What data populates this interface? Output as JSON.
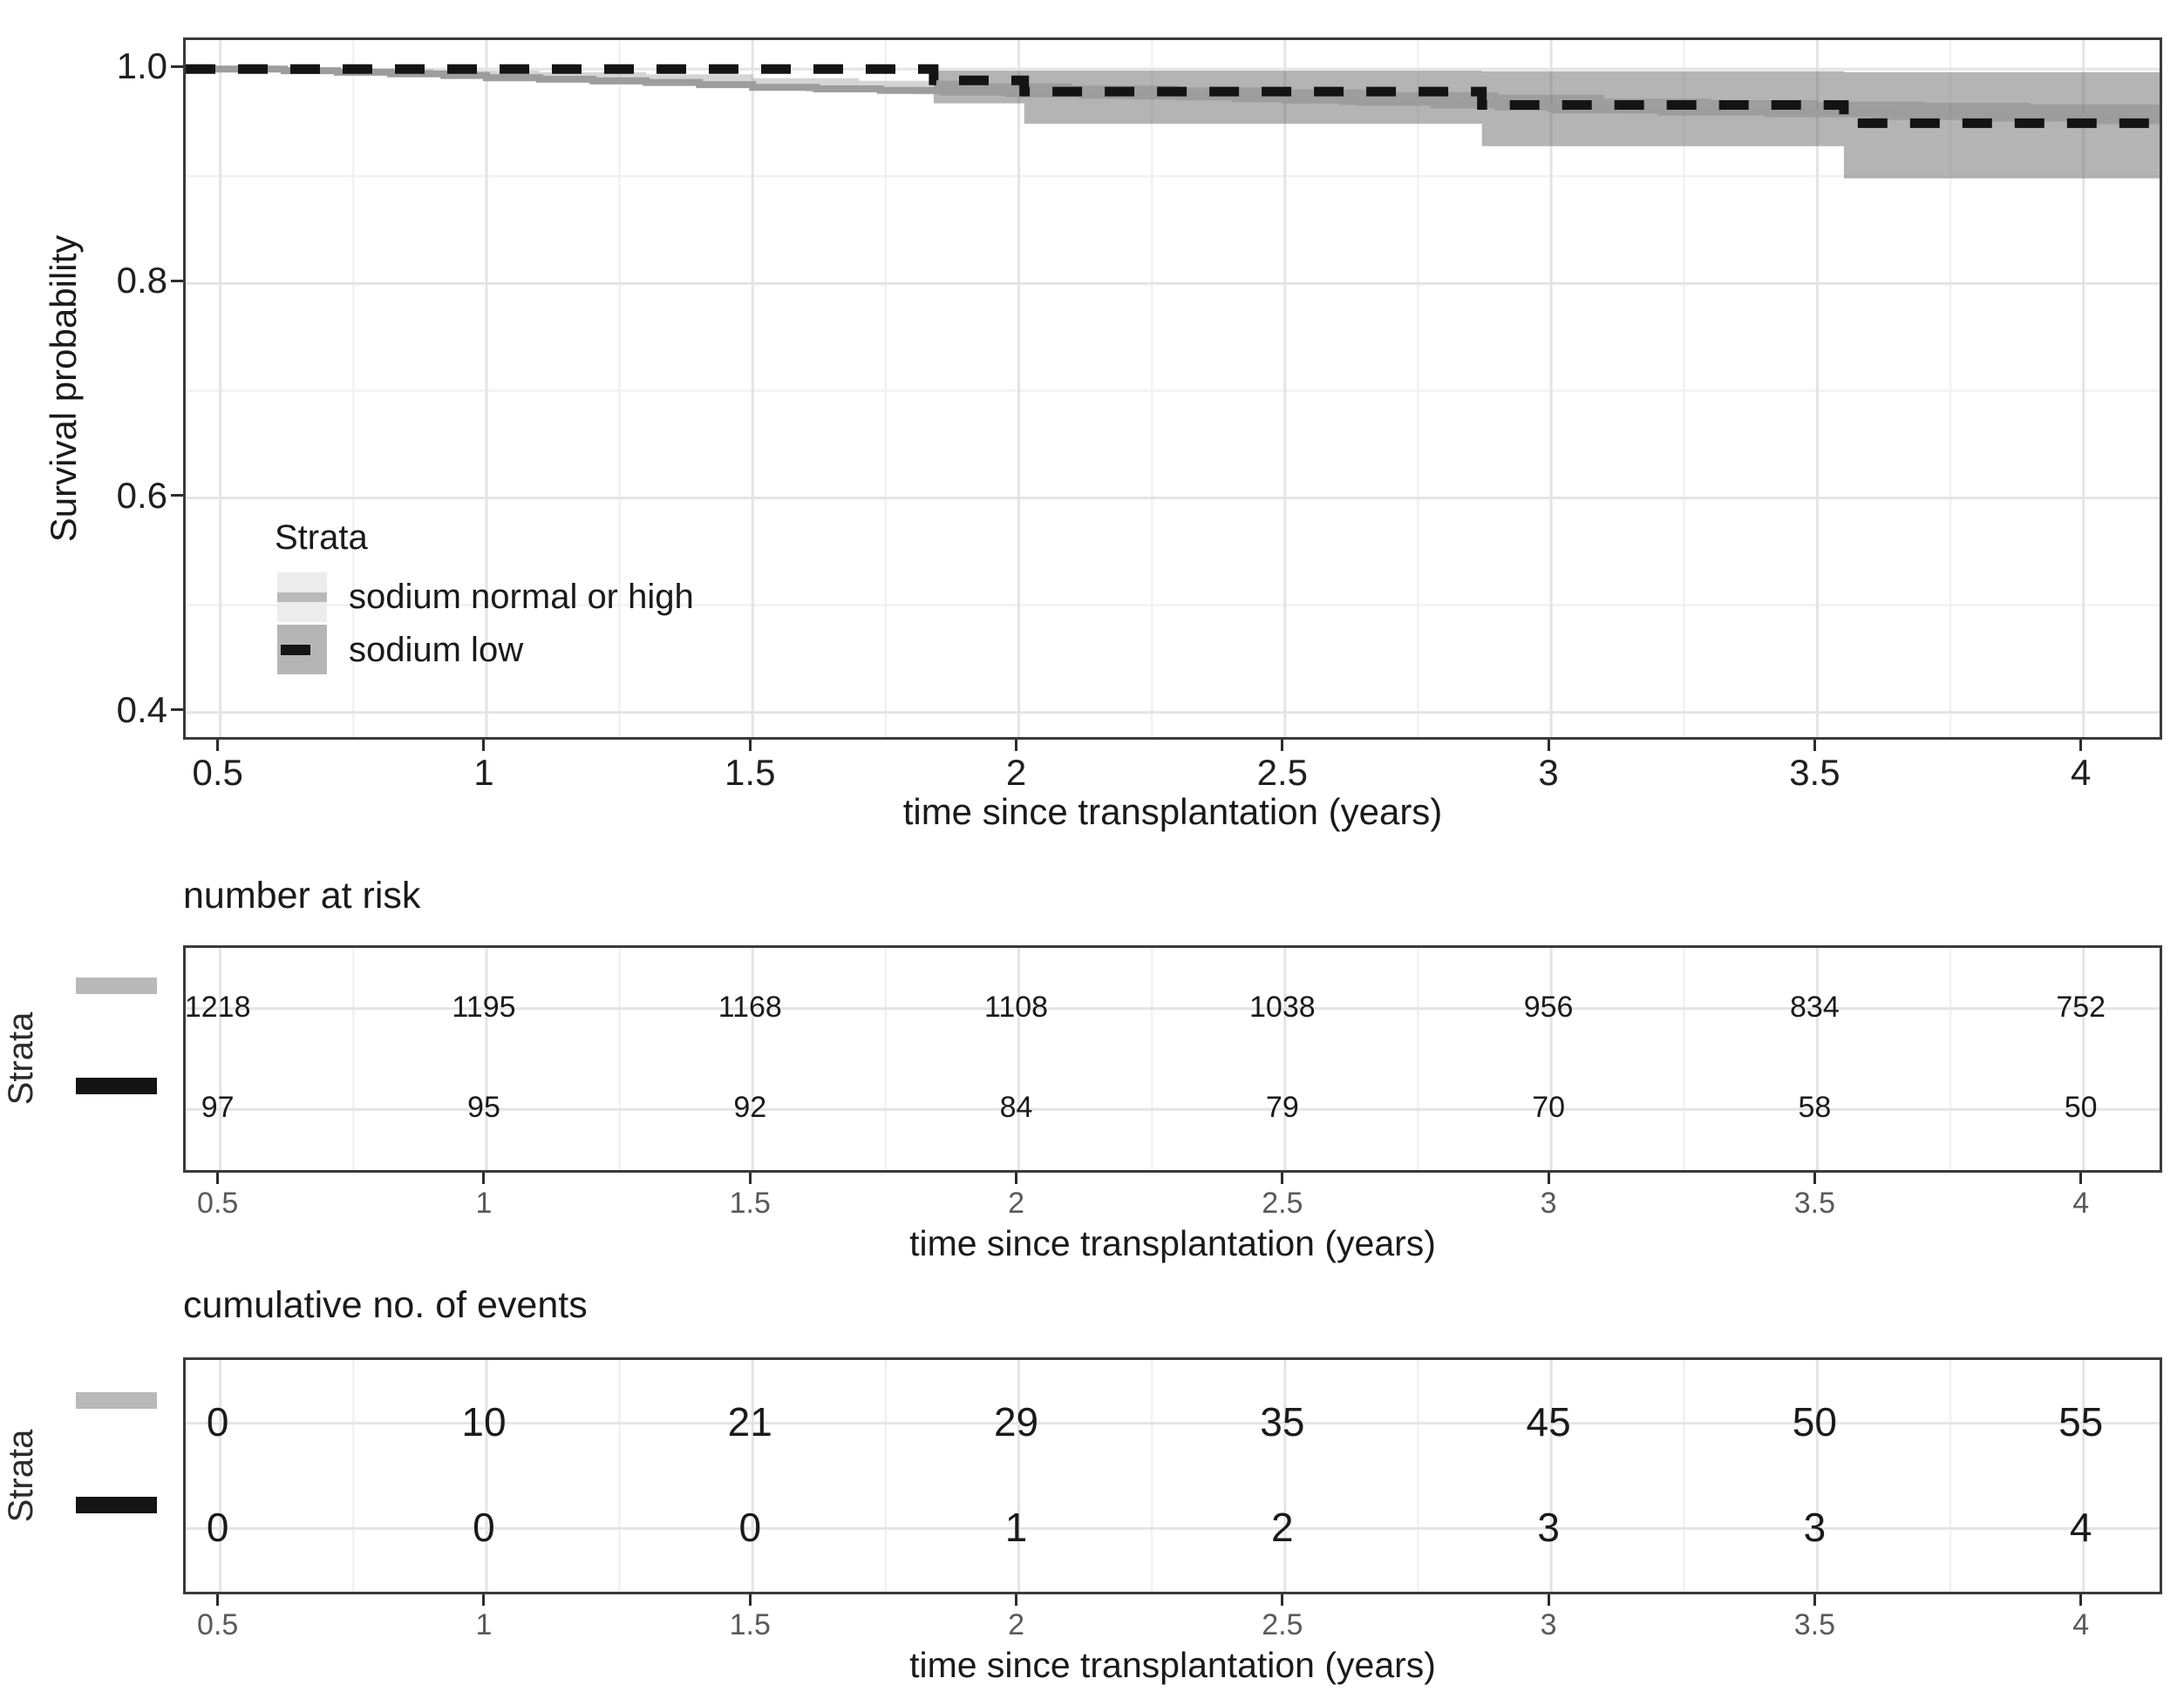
{
  "figure": {
    "main_chart": {
      "y_axis": {
        "title": "Survival probability"
      },
      "x_axis": {
        "title": "time since transplantation (years)"
      },
      "legend": {
        "title": "Strata",
        "items": [
          {
            "label": "sodium normal or high",
            "box_color": "#ececec",
            "line_color": "#b9b9b9",
            "dashed": false
          },
          {
            "label": "sodium low",
            "box_color": "#b5b5b5",
            "line_color": "#141414",
            "dashed": true
          }
        ]
      }
    },
    "risk_table": {
      "title": "number at risk",
      "axis_label": "Strata",
      "x_title": "time since transplantation (years)"
    },
    "events_table": {
      "title": "cumulative no. of events",
      "axis_label": "Strata",
      "x_title": "time since transplantation (years)"
    }
  },
  "chart_data": {
    "type": "line",
    "subtype": "kaplan-meier-step",
    "title": "",
    "xlabel": "time since transplantation (years)",
    "ylabel": "Survival probability",
    "xlim": [
      0.435,
      4.143
    ],
    "ylim": [
      0.377,
      1.027
    ],
    "x_ticks": [
      0.5,
      1,
      1.5,
      2,
      2.5,
      3,
      3.5,
      4
    ],
    "x_tick_labels": [
      "0.5",
      "1",
      "1.5",
      "2",
      "2.5",
      "3",
      "3.5",
      "4"
    ],
    "x_minor_ticks": [
      0.75,
      1.25,
      1.75,
      2.25,
      2.75,
      3.25,
      3.75
    ],
    "y_ticks": [
      1.0,
      0.8,
      0.6,
      0.4
    ],
    "y_tick_labels": [
      "1.0",
      "0.8",
      "0.6",
      "0.4"
    ],
    "y_minor_ticks": [
      0.9,
      0.7,
      0.5
    ],
    "grid": true,
    "legend_position": "inside-left-middle",
    "series": [
      {
        "name": "sodium normal or high",
        "style": "solid",
        "color": "#9d9d9d",
        "ci_color": "rgba(125,125,125,0.32)",
        "steps": [
          [
            0.435,
            1.0
          ],
          [
            0.62,
            0.9985
          ],
          [
            0.72,
            0.997
          ],
          [
            0.82,
            0.9955
          ],
          [
            0.92,
            0.994
          ],
          [
            1.0,
            0.992
          ],
          [
            1.1,
            0.9905
          ],
          [
            1.2,
            0.989
          ],
          [
            1.3,
            0.9875
          ],
          [
            1.4,
            0.9855
          ],
          [
            1.5,
            0.983
          ],
          [
            1.62,
            0.9815
          ],
          [
            1.74,
            0.98
          ],
          [
            1.86,
            0.9785
          ],
          [
            1.98,
            0.977
          ],
          [
            2.12,
            0.9755
          ],
          [
            2.3,
            0.974
          ],
          [
            2.42,
            0.9725
          ],
          [
            2.5,
            0.971
          ],
          [
            2.64,
            0.969
          ],
          [
            2.78,
            0.9665
          ],
          [
            2.9,
            0.9645
          ],
          [
            3.0,
            0.963
          ],
          [
            3.15,
            0.9618
          ],
          [
            3.3,
            0.9605
          ],
          [
            3.42,
            0.9595
          ],
          [
            3.5,
            0.9589
          ],
          [
            3.65,
            0.9575
          ],
          [
            3.8,
            0.956
          ],
          [
            3.95,
            0.955
          ],
          [
            4.05,
            0.9545
          ],
          [
            4.143,
            0.954
          ]
        ],
        "ci_upper": [
          [
            0.435,
            1.0
          ],
          [
            0.9,
            0.9985
          ],
          [
            1.1,
            0.997
          ],
          [
            1.3,
            0.995
          ],
          [
            1.5,
            0.9915
          ],
          [
            1.7,
            0.989
          ],
          [
            1.9,
            0.9865
          ],
          [
            2.1,
            0.9845
          ],
          [
            2.3,
            0.983
          ],
          [
            2.5,
            0.981
          ],
          [
            2.7,
            0.9785
          ],
          [
            2.9,
            0.976
          ],
          [
            3.1,
            0.9725
          ],
          [
            3.3,
            0.971
          ],
          [
            3.5,
            0.9695
          ],
          [
            3.7,
            0.9685
          ],
          [
            3.9,
            0.967
          ],
          [
            4.143,
            0.9655
          ]
        ],
        "ci_lower": [
          [
            0.435,
            1.0
          ],
          [
            0.8,
            0.996
          ],
          [
            1.0,
            0.9885
          ],
          [
            1.2,
            0.9855
          ],
          [
            1.4,
            0.9825
          ],
          [
            1.6,
            0.979
          ],
          [
            1.8,
            0.9765
          ],
          [
            2.0,
            0.9735
          ],
          [
            2.2,
            0.9715
          ],
          [
            2.4,
            0.969
          ],
          [
            2.6,
            0.9665
          ],
          [
            2.8,
            0.964
          ],
          [
            3.0,
            0.9585
          ],
          [
            3.2,
            0.9565
          ],
          [
            3.4,
            0.955
          ],
          [
            3.6,
            0.9525
          ],
          [
            3.8,
            0.951
          ],
          [
            4.0,
            0.9485
          ],
          [
            4.143,
            0.9475
          ]
        ]
      },
      {
        "name": "sodium low",
        "style": "dashed",
        "color": "#141414",
        "ci_color": "rgba(95,95,95,0.47)",
        "steps": [
          [
            0.435,
            1.0
          ],
          [
            1.84,
            0.9895
          ],
          [
            2.01,
            0.979
          ],
          [
            2.87,
            0.9665
          ],
          [
            3.55,
            0.9495
          ],
          [
            4.143,
            0.9495
          ]
        ],
        "ci_upper": [
          [
            1.84,
            0.9985
          ],
          [
            2.87,
            0.998
          ],
          [
            3.55,
            0.997
          ],
          [
            4.143,
            0.996
          ]
        ],
        "ci_lower": [
          [
            1.84,
            0.968
          ],
          [
            2.01,
            0.949
          ],
          [
            2.87,
            0.928
          ],
          [
            3.55,
            0.898
          ],
          [
            4.143,
            0.898
          ]
        ]
      }
    ],
    "risk_table": {
      "title": "number at risk",
      "time_points": [
        0.5,
        1,
        1.5,
        2,
        2.5,
        3,
        3.5,
        4
      ],
      "strata": [
        {
          "name": "sodium normal or high",
          "color": "#b9b9b9",
          "values": [
            "1218",
            "1195",
            "1168",
            "1108",
            "1038",
            "956",
            "834",
            "752"
          ]
        },
        {
          "name": "sodium low",
          "color": "#141414",
          "values": [
            "97",
            "95",
            "92",
            "84",
            "79",
            "70",
            "58",
            "50"
          ]
        }
      ]
    },
    "events_table": {
      "title": "cumulative no. of events",
      "time_points": [
        0.5,
        1,
        1.5,
        2,
        2.5,
        3,
        3.5,
        4
      ],
      "strata": [
        {
          "name": "sodium normal or high",
          "color": "#b9b9b9",
          "values": [
            "0",
            "10",
            "21",
            "29",
            "35",
            "45",
            "50",
            "55"
          ]
        },
        {
          "name": "sodium low",
          "color": "#141414",
          "values": [
            "0",
            "0",
            "0",
            "1",
            "2",
            "3",
            "3",
            "4"
          ]
        }
      ]
    }
  }
}
